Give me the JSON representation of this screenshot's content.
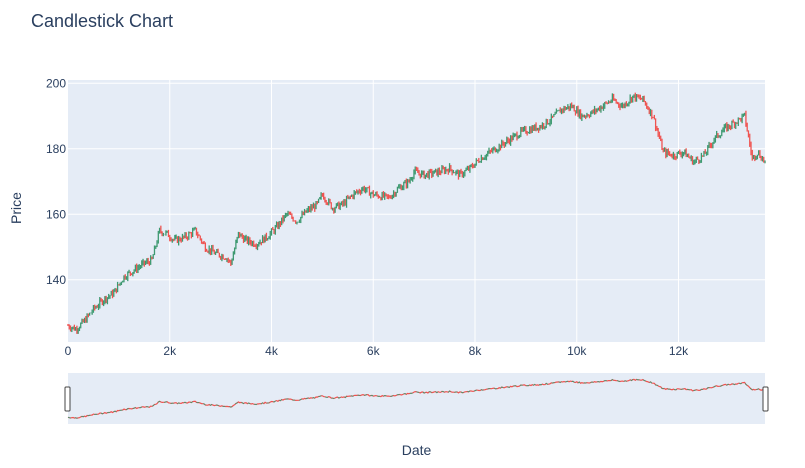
{
  "chart_data": {
    "type": "candlestick",
    "title": "Candlestick Chart",
    "xlabel": "Date",
    "ylabel": "Price",
    "xlim": [
      0,
      13700
    ],
    "ylim": [
      121,
      201
    ],
    "x_ticks": [
      0,
      2000,
      4000,
      6000,
      8000,
      10000,
      12000
    ],
    "x_tick_labels": [
      "0",
      "2k",
      "4k",
      "6k",
      "8k",
      "10k",
      "12k"
    ],
    "y_ticks": [
      140,
      160,
      180,
      200
    ],
    "range_slider": true,
    "increasing_color": "#3d9970",
    "decreasing_color": "#ef5350",
    "approx_close_path": [
      [
        0,
        126
      ],
      [
        150,
        125
      ],
      [
        300,
        127
      ],
      [
        500,
        131
      ],
      [
        700,
        134
      ],
      [
        900,
        136
      ],
      [
        1100,
        141
      ],
      [
        1300,
        143
      ],
      [
        1500,
        145
      ],
      [
        1650,
        146
      ],
      [
        1800,
        155
      ],
      [
        1950,
        154
      ],
      [
        2100,
        152
      ],
      [
        2300,
        153
      ],
      [
        2500,
        155
      ],
      [
        2700,
        150
      ],
      [
        2900,
        148
      ],
      [
        3100,
        147
      ],
      [
        3200,
        145
      ],
      [
        3350,
        154
      ],
      [
        3500,
        152
      ],
      [
        3700,
        151
      ],
      [
        3900,
        153
      ],
      [
        4100,
        156
      ],
      [
        4300,
        160
      ],
      [
        4500,
        158
      ],
      [
        4700,
        161
      ],
      [
        4900,
        163
      ],
      [
        5000,
        166
      ],
      [
        5200,
        162
      ],
      [
        5400,
        163
      ],
      [
        5600,
        166
      ],
      [
        5800,
        168
      ],
      [
        6000,
        166
      ],
      [
        6300,
        165
      ],
      [
        6500,
        168
      ],
      [
        6700,
        170
      ],
      [
        6800,
        173
      ],
      [
        7000,
        172
      ],
      [
        7300,
        173
      ],
      [
        7500,
        174
      ],
      [
        7700,
        172
      ],
      [
        7900,
        174
      ],
      [
        8100,
        177
      ],
      [
        8300,
        179
      ],
      [
        8500,
        181
      ],
      [
        8700,
        183
      ],
      [
        8900,
        185
      ],
      [
        9100,
        186
      ],
      [
        9300,
        187
      ],
      [
        9500,
        189
      ],
      [
        9700,
        192
      ],
      [
        9900,
        193
      ],
      [
        10100,
        190
      ],
      [
        10300,
        191
      ],
      [
        10500,
        193
      ],
      [
        10700,
        195
      ],
      [
        10900,
        193
      ],
      [
        11100,
        196
      ],
      [
        11300,
        195
      ],
      [
        11500,
        190
      ],
      [
        11700,
        179
      ],
      [
        11900,
        178
      ],
      [
        12100,
        179
      ],
      [
        12300,
        176
      ],
      [
        12500,
        178
      ],
      [
        12700,
        183
      ],
      [
        12900,
        186
      ],
      [
        13100,
        188
      ],
      [
        13300,
        190
      ],
      [
        13450,
        177
      ],
      [
        13550,
        179
      ],
      [
        13700,
        176
      ]
    ]
  }
}
